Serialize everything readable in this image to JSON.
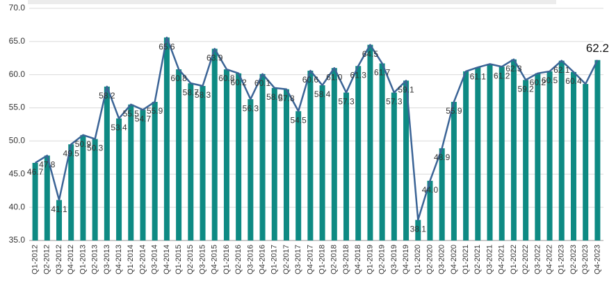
{
  "chart_data": {
    "type": "bar",
    "categories": [
      "Q1-2012",
      "Q2-2012",
      "Q3-2012",
      "Q4-2012",
      "Q1-2013",
      "Q2-2013",
      "Q3-2013",
      "Q4-2013",
      "Q1-2014",
      "Q2-2014",
      "Q3-2014",
      "Q4-2014",
      "Q1-2015",
      "Q2-2015",
      "Q3-2015",
      "Q4-2015",
      "Q1-2016",
      "Q2-2016",
      "Q3-2016",
      "Q4-2016",
      "Q1-2017",
      "Q2-2017",
      "Q3-2017",
      "Q4-2017",
      "Q1-2018",
      "Q2-2018",
      "Q3-2018",
      "Q4-2018",
      "Q1-2019",
      "Q2-2019",
      "Q3-2019",
      "Q4-2019",
      "Q1-2020",
      "Q2-2020",
      "Q3-2020",
      "Q4-2020",
      "Q1-2021",
      "Q2-2021",
      "Q3-2021",
      "Q4-2021",
      "Q1-2022",
      "Q2-2022",
      "Q3-2022",
      "Q4-2022",
      "Q1-2023",
      "Q2-2023",
      "Q3-2023",
      "Q4-2023"
    ],
    "values": [
      46.7,
      47.8,
      41.1,
      49.5,
      50.9,
      50.3,
      58.2,
      53.4,
      55.5,
      54.7,
      55.9,
      65.6,
      60.8,
      58.7,
      58.3,
      63.9,
      60.8,
      60.2,
      56.3,
      60.1,
      58.0,
      57.8,
      54.5,
      60.6,
      58.4,
      61.0,
      57.3,
      61.3,
      64.5,
      61.7,
      57.3,
      59.1,
      38.1,
      44.0,
      48.9,
      55.9,
      60.5,
      61.1,
      61.6,
      61.2,
      62.3,
      59.2,
      60.2,
      60.5,
      62.1,
      60.4,
      58.6,
      62.2
    ],
    "value_labels": [
      "46.7",
      "47.8",
      "41.1",
      "49.5",
      "50.9",
      "50.3",
      "58.2",
      "53.4",
      "55.5",
      "54.7",
      "55.9",
      "65.6",
      "60.8",
      "58.7",
      "58.3",
      "63.9",
      "60.8",
      "60.2",
      "56.3",
      "60.1",
      "58.0",
      "57.8",
      "54.5",
      "60.6",
      "58.4",
      "61.0",
      "57.3",
      "61.3",
      "64.5",
      "61.7",
      "57.3",
      "59.1",
      "38.1",
      "44.0",
      "48.9",
      "55.9",
      null,
      "61.1",
      null,
      "61.2",
      "62.3",
      "59.2",
      "60.2",
      "60.5",
      "62.1",
      "60.4",
      null,
      "62.2"
    ],
    "color": "#0e8a83",
    "line_color": "#3b6496",
    "ylim": [
      35,
      70
    ],
    "yticks": [
      {
        "value": 35,
        "label": "35.0"
      },
      {
        "value": 40,
        "label": "40.0"
      },
      {
        "value": 45,
        "label": "45.0"
      },
      {
        "value": 50,
        "label": "50.0"
      },
      {
        "value": 55,
        "label": "55.0"
      },
      {
        "value": 60,
        "label": "60.0"
      },
      {
        "value": 65,
        "label": "65.0"
      },
      {
        "value": 70,
        "label": "70.0"
      }
    ],
    "grid": true
  }
}
